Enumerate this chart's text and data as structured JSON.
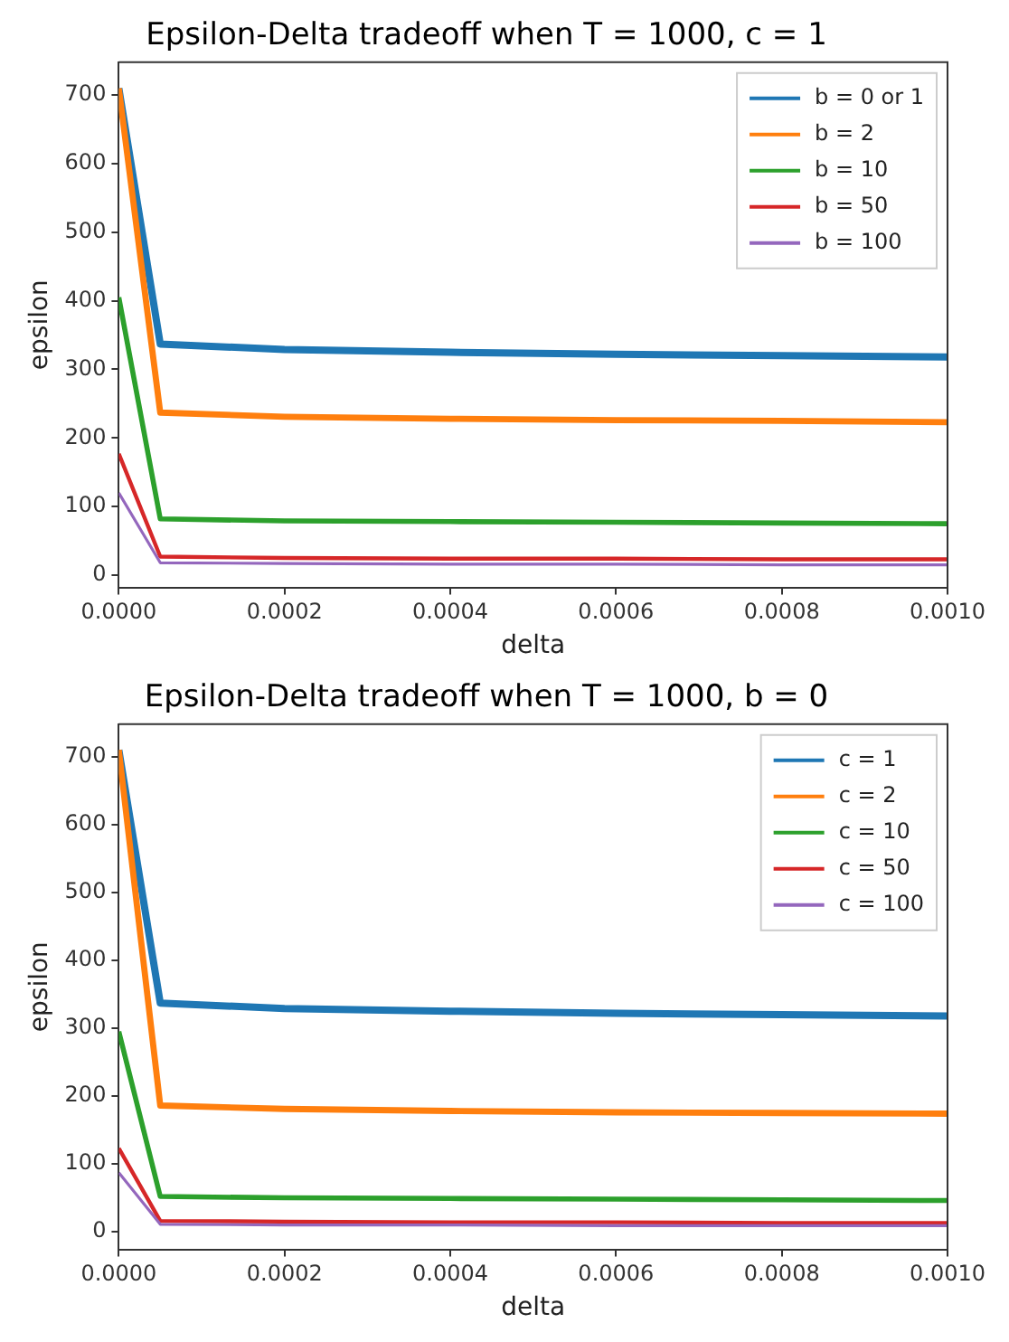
{
  "chart_data": [
    {
      "type": "line",
      "title": "Epsilon-Delta tradeoff when T = 1000, c = 1",
      "xlabel": "delta",
      "ylabel": "epsilon",
      "x": [
        0,
        5e-05,
        0.0002,
        0.0004,
        0.0006,
        0.0008,
        0.001
      ],
      "series": [
        {
          "name": "b = 0 or 1",
          "color": "#1f77b4",
          "values": [
            710,
            337,
            329,
            325,
            322,
            320,
            318
          ]
        },
        {
          "name": "b = 2",
          "color": "#ff7f0e",
          "values": [
            710,
            237,
            231,
            228,
            226,
            225,
            223
          ]
        },
        {
          "name": "b = 10",
          "color": "#2ca02c",
          "values": [
            405,
            82,
            79,
            78,
            77,
            76,
            75
          ]
        },
        {
          "name": "b = 50",
          "color": "#d62728",
          "values": [
            177,
            27,
            25,
            24,
            24,
            23,
            23
          ]
        },
        {
          "name": "b = 100",
          "color": "#9467bd",
          "values": [
            120,
            18,
            17,
            16,
            16,
            15,
            15
          ]
        }
      ],
      "xlim": [
        0,
        0.001
      ],
      "xticks": [
        {
          "value": 0,
          "label": "0.0000"
        },
        {
          "value": 0.0002,
          "label": "0.0002"
        },
        {
          "value": 0.0004,
          "label": "0.0004"
        },
        {
          "value": 0.0006,
          "label": "0.0006"
        },
        {
          "value": 0.0008,
          "label": "0.0008"
        },
        {
          "value": 0.001,
          "label": "0.0010"
        }
      ],
      "ylim": [
        -18,
        748
      ],
      "yticks": [
        0,
        100,
        200,
        300,
        400,
        500,
        600,
        700
      ],
      "grid": false,
      "legend": "top right",
      "marker": "none",
      "line_style": "solid"
    },
    {
      "type": "line",
      "title": "Epsilon-Delta tradeoff when T = 1000, b = 0",
      "xlabel": "delta",
      "ylabel": "epsilon",
      "x": [
        0,
        5e-05,
        0.0002,
        0.0004,
        0.0006,
        0.0008,
        0.001
      ],
      "series": [
        {
          "name": "c = 1",
          "color": "#1f77b4",
          "values": [
            710,
            337,
            329,
            325,
            322,
            320,
            318
          ]
        },
        {
          "name": "c = 2",
          "color": "#ff7f0e",
          "values": [
            710,
            186,
            181,
            178,
            176,
            175,
            174
          ]
        },
        {
          "name": "c = 10",
          "color": "#2ca02c",
          "values": [
            295,
            52,
            50,
            49,
            48,
            47,
            46
          ]
        },
        {
          "name": "c = 50",
          "color": "#d62728",
          "values": [
            123,
            16,
            15,
            14,
            14,
            13,
            13
          ]
        },
        {
          "name": "c = 100",
          "color": "#9467bd",
          "values": [
            87,
            11,
            10,
            10,
            9,
            9,
            9
          ]
        }
      ],
      "xlim": [
        0,
        0.001
      ],
      "xticks": [
        {
          "value": 0,
          "label": "0.0000"
        },
        {
          "value": 0.0002,
          "label": "0.0002"
        },
        {
          "value": 0.0004,
          "label": "0.0004"
        },
        {
          "value": 0.0006,
          "label": "0.0006"
        },
        {
          "value": 0.0008,
          "label": "0.0008"
        },
        {
          "value": 0.001,
          "label": "0.0010"
        }
      ],
      "ylim": [
        -26,
        748
      ],
      "yticks": [
        0,
        100,
        200,
        300,
        400,
        500,
        600,
        700
      ],
      "grid": false,
      "legend": "top right",
      "marker": "none",
      "line_style": "solid"
    }
  ]
}
